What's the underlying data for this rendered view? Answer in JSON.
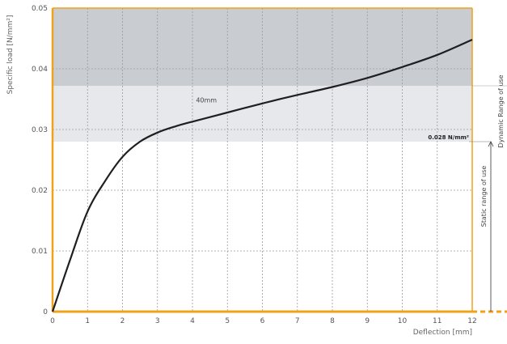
{
  "colors": {
    "axis": "#f0a21a",
    "curve": "#1f1f1f",
    "dynamic_band": "#c9ccd1",
    "static_band": "#e6e8ec",
    "grid": "#9a9a9a"
  },
  "chart_data": {
    "type": "line",
    "title": "",
    "xlabel": "Deflection [mm]",
    "ylabel": "Specific load [N/mm²]",
    "xlim": [
      0,
      12
    ],
    "ylim": [
      0,
      0.05
    ],
    "grid": true,
    "x_ticks": [
      "0",
      "1",
      "2",
      "3",
      "4",
      "5",
      "6",
      "7",
      "8",
      "9",
      "10",
      "11",
      "12"
    ],
    "y_ticks": [
      "0",
      "0.01",
      "0.02",
      "0.03",
      "0.04",
      "0.05"
    ],
    "series": [
      {
        "name": "40mm",
        "x": [
          0,
          0.5,
          1,
          1.5,
          2,
          2.5,
          3,
          3.5,
          4,
          5,
          6,
          7,
          8,
          9,
          10,
          11,
          12
        ],
        "y": [
          0,
          0.0085,
          0.0165,
          0.0215,
          0.0255,
          0.028,
          0.0295,
          0.0305,
          0.0313,
          0.0328,
          0.0343,
          0.0357,
          0.037,
          0.0385,
          0.0403,
          0.0423,
          0.0448
        ]
      }
    ],
    "bands": [
      {
        "name": "Static range of use",
        "from": 0.028,
        "to": 0.0372
      },
      {
        "name": "Dynamic range of use",
        "from": 0.0372,
        "to": 0.05
      }
    ],
    "annotations": {
      "curve_label": "40mm",
      "threshold_label": "0.028 N/mm²",
      "static_label": "Static range of use",
      "dynamic_label": "Dynamic Range of use"
    }
  }
}
